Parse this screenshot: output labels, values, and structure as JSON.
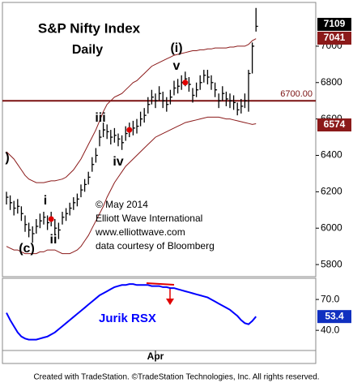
{
  "chart_data": [
    {
      "type": "ohlc",
      "title": "S&P Nifty Index",
      "subtitle": "Daily",
      "categories": [
        null,
        null,
        null,
        null,
        null,
        null,
        null,
        null,
        null,
        null,
        null,
        null,
        null,
        null,
        null,
        null,
        null,
        null,
        null,
        null,
        null,
        null,
        null,
        null,
        null,
        null,
        null,
        null,
        null,
        null,
        null,
        null,
        null,
        null,
        null,
        null,
        null,
        null,
        null,
        null,
        "Apr",
        null,
        null,
        null,
        null,
        null,
        null,
        null,
        null,
        null,
        null,
        null,
        null,
        null,
        null,
        null,
        null,
        null,
        null,
        null,
        null,
        null,
        null,
        null,
        null,
        null,
        null,
        null
      ],
      "high": [
        6200,
        6180,
        6150,
        6160,
        6120,
        6070,
        6030,
        6010,
        6050,
        6080,
        6090,
        6070,
        6090,
        6050,
        6030,
        6090,
        6110,
        6140,
        6170,
        6190,
        6240,
        6270,
        6310,
        6390,
        6440,
        6540,
        6580,
        6570,
        6540,
        6550,
        6520,
        6510,
        6560,
        6580,
        6590,
        6600,
        6640,
        6660,
        6720,
        6760,
        6740,
        6780,
        6750,
        6720,
        6760,
        6810,
        6820,
        6840,
        6860,
        6830,
        6770,
        6800,
        6840,
        6870,
        6870,
        6840,
        6800,
        6740,
        6780,
        6750,
        6740,
        6730,
        6690,
        6710,
        6740,
        6870,
        7020,
        7210
      ],
      "low": [
        6130,
        6100,
        6070,
        6080,
        6040,
        5980,
        5950,
        5920,
        5970,
        6000,
        6020,
        5990,
        6010,
        5960,
        5940,
        6020,
        6040,
        6070,
        6100,
        6120,
        6170,
        6200,
        6240,
        6310,
        6360,
        6450,
        6500,
        6490,
        6460,
        6470,
        6450,
        6430,
        6480,
        6500,
        6510,
        6520,
        6560,
        6580,
        6630,
        6680,
        6660,
        6700,
        6660,
        6640,
        6680,
        6730,
        6740,
        6760,
        6780,
        6750,
        6690,
        6720,
        6760,
        6800,
        6790,
        6760,
        6720,
        6660,
        6700,
        6670,
        6660,
        6650,
        6620,
        6630,
        6660,
        6640,
        6850,
        7080
      ],
      "close": [
        6170,
        6140,
        6110,
        6120,
        6080,
        6020,
        5990,
        5970,
        6010,
        6040,
        6060,
        6030,
        6050,
        6000,
        5990,
        6060,
        6080,
        6110,
        6140,
        6160,
        6210,
        6240,
        6280,
        6350,
        6400,
        6500,
        6540,
        6530,
        6500,
        6510,
        6490,
        6470,
        6520,
        6540,
        6550,
        6560,
        6600,
        6620,
        6680,
        6720,
        6700,
        6740,
        6700,
        6680,
        6720,
        6770,
        6780,
        6800,
        6820,
        6790,
        6730,
        6760,
        6800,
        6840,
        6830,
        6800,
        6760,
        6700,
        6740,
        6710,
        6700,
        6690,
        6650,
        6670,
        6700,
        6850,
        7000,
        7109
      ],
      "color": "#000000",
      "bands": [
        {
          "color": "#8b1a1a",
          "values": [
            6420,
            6400,
            6380,
            6350,
            6320,
            6290,
            6270,
            6260,
            6250,
            6250,
            6250,
            6255,
            6260,
            6260,
            6265,
            6270,
            6280,
            6300,
            6320,
            6350,
            6380,
            6420,
            6460,
            6500,
            6540,
            6590,
            6640,
            6680,
            6700,
            6720,
            6730,
            6740,
            6760,
            6780,
            6800,
            6810,
            6830,
            6850,
            6870,
            6890,
            6900,
            6910,
            6920,
            6930,
            6940,
            6950,
            6955,
            6960,
            6965,
            6970,
            6975,
            6975,
            6980,
            6980,
            6985,
            6985,
            6990,
            6990,
            6990,
            6990,
            6995,
            6995,
            7000,
            7000,
            7000,
            7010,
            7030,
            7041
          ]
        },
        {
          "color": "#8b1a1a",
          "values": [
            5900,
            5890,
            5880,
            5880,
            5870,
            5860,
            5860,
            5860,
            5860,
            5870,
            5870,
            5880,
            5880,
            5880,
            5870,
            5860,
            5860,
            5860,
            5870,
            5880,
            5900,
            5930,
            5960,
            6000,
            6040,
            6080,
            6120,
            6170,
            6210,
            6250,
            6280,
            6310,
            6340,
            6360,
            6380,
            6400,
            6420,
            6440,
            6460,
            6480,
            6500,
            6510,
            6520,
            6530,
            6540,
            6550,
            6560,
            6570,
            6580,
            6585,
            6590,
            6595,
            6600,
            6605,
            6610,
            6610,
            6610,
            6610,
            6605,
            6600,
            6600,
            6595,
            6590,
            6585,
            6580,
            6575,
            6570,
            6574
          ]
        }
      ],
      "reference_lines": [
        {
          "value": 6700,
          "label": "6700.00",
          "color": "#7a1010"
        }
      ],
      "ylim": [
        5738,
        7218
      ],
      "yticks": [
        5800,
        6000,
        6200,
        6400,
        6600,
        6800,
        7000
      ],
      "wave_labels": [
        ")",
        "(c)",
        "i",
        "ii",
        "iii",
        "iv",
        "v",
        "(i)"
      ],
      "notes": [
        "© May 2014",
        "Elliott Wave International",
        "www.elliottwave.com",
        "data courtesy of Bloomberg"
      ]
    },
    {
      "type": "line",
      "title": "Jurik RSX",
      "color": "#0000ff",
      "values": [
        57,
        50,
        44,
        38,
        34,
        32,
        31,
        31,
        31,
        32,
        33,
        34,
        36,
        38,
        41,
        44,
        47,
        50,
        53,
        56,
        59,
        62,
        65,
        68,
        71,
        74,
        76,
        78,
        80,
        82,
        83,
        84,
        84,
        85,
        85,
        84,
        84,
        84,
        84,
        83,
        83,
        83,
        82,
        82,
        81,
        81,
        80,
        79,
        78,
        77,
        76,
        75,
        74,
        73,
        72,
        70,
        68,
        66,
        64,
        62,
        60,
        57,
        54,
        50,
        47,
        46,
        49,
        53.4
      ],
      "ylim": [
        22,
        89
      ],
      "yticks": [
        {
          "value": 40,
          "label": "40.0"
        },
        {
          "value": 70,
          "label": "70.0"
        }
      ]
    }
  ],
  "footer": "Created with TradeStation. ©TradeStation Technologies, Inc. All rights reserved."
}
